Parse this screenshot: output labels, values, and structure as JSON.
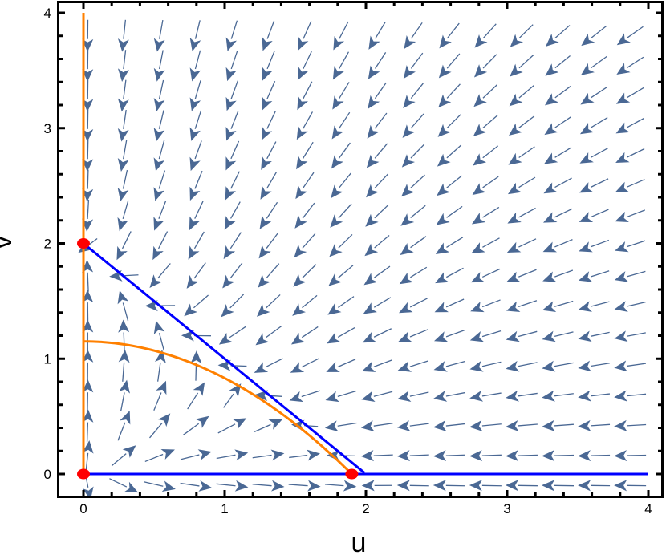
{
  "chart_data": {
    "type": "vector-field",
    "title": "",
    "xlabel": "u",
    "ylabel": "v",
    "xlim": [
      -0.15,
      4.1
    ],
    "ylim": [
      -0.2,
      4.05
    ],
    "xticks": [
      "0",
      "1",
      "2",
      "3",
      "4"
    ],
    "yticks": [
      "0",
      "1",
      "2",
      "3",
      "4"
    ],
    "grid": false,
    "arrow_color": "#4a6894",
    "arrow_grid": {
      "u_start": 0.03,
      "v_start": -0.1,
      "step_u": 0.256,
      "step_v": 0.26,
      "count": 16
    },
    "nullclines": [
      {
        "variable": "u",
        "color": "#ff8000",
        "kind": "vertical-axis",
        "u": 0,
        "v_range": [
          0,
          4
        ]
      },
      {
        "variable": "u",
        "color": "#ff8000",
        "kind": "curve",
        "u_intercept": 1.9,
        "v_intercept": 1.15
      },
      {
        "variable": "v",
        "color": "#0000ff",
        "kind": "horizontal-axis",
        "v": 0,
        "u_range": [
          0,
          4
        ]
      },
      {
        "variable": "v",
        "color": "#0000ff",
        "kind": "line",
        "u_intercept": 2,
        "v_intercept": 2
      }
    ],
    "equilibria": {
      "color": "#ff0000",
      "points": [
        [
          0,
          0
        ],
        [
          0,
          2
        ],
        [
          1.9,
          0
        ]
      ]
    }
  }
}
